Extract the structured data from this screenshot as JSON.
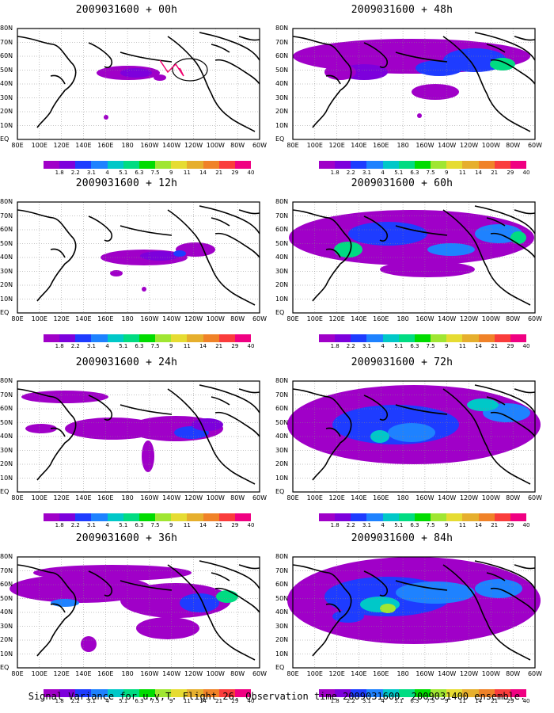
{
  "panels": [
    {
      "title": "2009031600 + 00h",
      "intensity": 0
    },
    {
      "title": "2009031600 + 12h",
      "intensity": 1
    },
    {
      "title": "2009031600 + 24h",
      "intensity": 2
    },
    {
      "title": "2009031600 + 36h",
      "intensity": 3
    },
    {
      "title": "2009031600 + 48h",
      "intensity": 4
    },
    {
      "title": "2009031600 + 60h",
      "intensity": 5
    },
    {
      "title": "2009031600 + 72h",
      "intensity": 6
    },
    {
      "title": "2009031600 + 84h",
      "intensity": 7
    }
  ],
  "x_ticks": [
    "80E",
    "100E",
    "120E",
    "140E",
    "160E",
    "180",
    "160W",
    "140W",
    "120W",
    "100W",
    "80W",
    "60W"
  ],
  "y_ticks": [
    "80N",
    "70N",
    "60N",
    "50N",
    "40N",
    "30N",
    "20N",
    "10N",
    "EQ"
  ],
  "colorbar": {
    "labels": [
      "1.8",
      "2.2",
      "3.1",
      "4",
      "5.1",
      "6.3",
      "7.5",
      "9",
      "11",
      "14",
      "21",
      "29",
      "40"
    ],
    "colors": [
      "#a000c8",
      "#7d00dc",
      "#1e3cff",
      "#1e82ff",
      "#00c8c8",
      "#00dc82",
      "#00dc00",
      "#a0e632",
      "#e6dc32",
      "#e6af2d",
      "#f08228",
      "#fa3c3c",
      "#f00082"
    ]
  },
  "caption": "Signal Variance for u,v,T. Flight 26. Observation time 2009031600. 2009031400 ensemble."
}
